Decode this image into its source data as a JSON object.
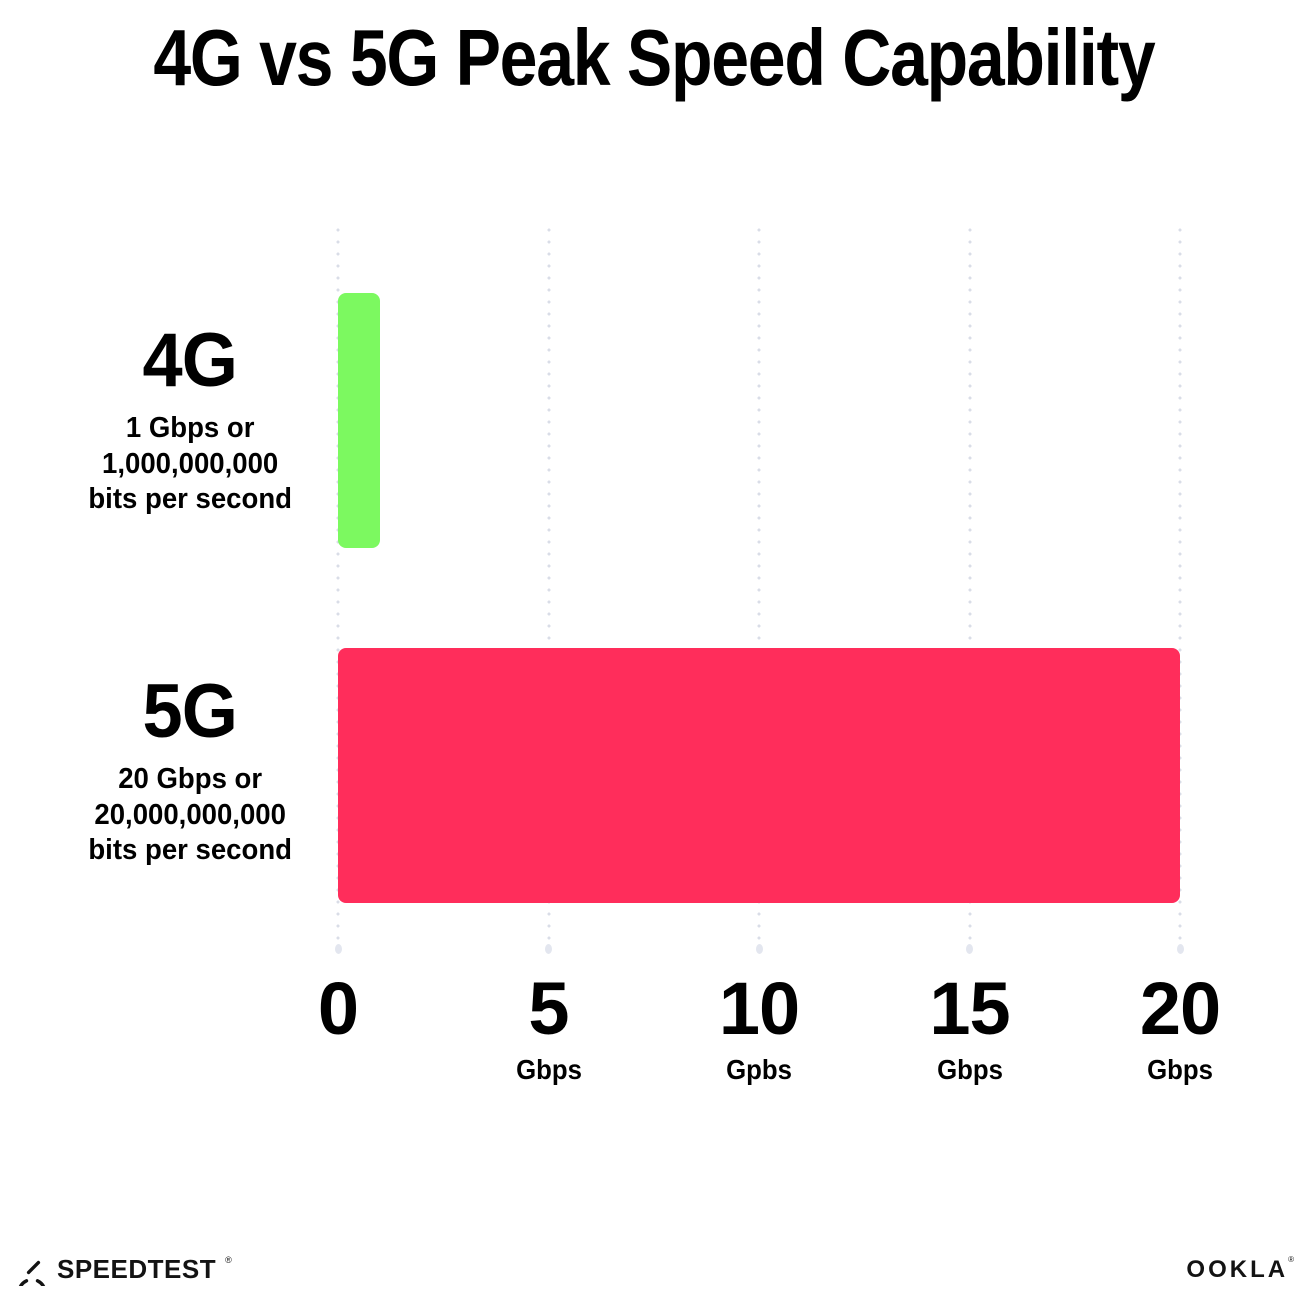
{
  "title": "4G vs 5G Peak Speed Capability",
  "chart_data": {
    "type": "bar",
    "orientation": "horizontal",
    "title": "4G vs 5G Peak Speed Capability",
    "categories": [
      "4G",
      "5G"
    ],
    "values": [
      1,
      20
    ],
    "xlim": [
      0,
      20
    ],
    "grid": "vertical-dotted",
    "legend": "none",
    "rows": [
      {
        "label": "4G",
        "description_lines": [
          "1 Gbps or",
          "1,000,000,000",
          "bits per second"
        ],
        "value": 1,
        "color": "#7CF960"
      },
      {
        "label": "5G",
        "description_lines": [
          "20 Gbps or",
          "20,000,000,000",
          "bits per second"
        ],
        "value": 20,
        "color": "#FF2D5B"
      }
    ],
    "x_ticks": [
      {
        "value": 0,
        "number": "0",
        "unit": ""
      },
      {
        "value": 5,
        "number": "5",
        "unit": "Gbps"
      },
      {
        "value": 10,
        "number": "10",
        "unit": "Gpbs"
      },
      {
        "value": 15,
        "number": "15",
        "unit": "Gbps"
      },
      {
        "value": 20,
        "number": "20",
        "unit": "Gbps"
      }
    ]
  },
  "footer": {
    "speedtest_wordmark": "SPEEDTEST",
    "speedtest_mark": "®",
    "ookla_wordmark": "OOKLA",
    "ookla_mark": "®"
  },
  "colors": {
    "bar_4g": "#7CF960",
    "bar_5g": "#FF2D5B",
    "grid_dot": "#D9DDE7",
    "background": "#FFFFFF",
    "text": "#000000",
    "footer_text": "#131313"
  }
}
